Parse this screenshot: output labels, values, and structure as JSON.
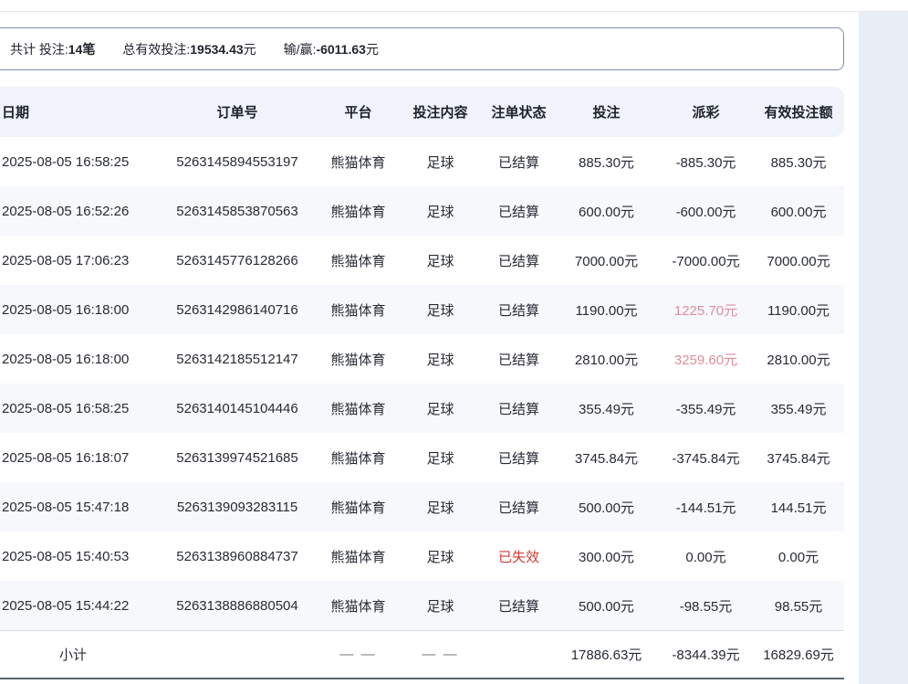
{
  "summary": {
    "total_label": "共计 投注:",
    "total_value": "14笔",
    "valid_label": "总有效投注:",
    "valid_value": "19534.43",
    "valid_unit": "元",
    "winloss_label": "输/赢:",
    "winloss_value": "-6011.63",
    "winloss_unit": "元"
  },
  "table": {
    "headers": [
      "日期",
      "订单号",
      "平台",
      "投注内容",
      "注单状态",
      "投注",
      "派彩",
      "有效投注额"
    ],
    "rows": [
      {
        "date": "2025-08-05 16:58:25",
        "order": "5263145894553197",
        "platform": "熊猫体育",
        "content": "足球",
        "status": "已结算",
        "status_type": "settled",
        "bet": "885.30元",
        "payout": "-885.30元",
        "payout_type": "negative",
        "valid": "885.30元"
      },
      {
        "date": "2025-08-05 16:52:26",
        "order": "5263145853870563",
        "platform": "熊猫体育",
        "content": "足球",
        "status": "已结算",
        "status_type": "settled",
        "bet": "600.00元",
        "payout": "-600.00元",
        "payout_type": "negative",
        "valid": "600.00元"
      },
      {
        "date": "2025-08-05 17:06:23",
        "order": "5263145776128266",
        "platform": "熊猫体育",
        "content": "足球",
        "status": "已结算",
        "status_type": "settled",
        "bet": "7000.00元",
        "payout": "-7000.00元",
        "payout_type": "negative",
        "valid": "7000.00元"
      },
      {
        "date": "2025-08-05 16:18:00",
        "order": "5263142986140716",
        "platform": "熊猫体育",
        "content": "足球",
        "status": "已结算",
        "status_type": "settled",
        "bet": "1190.00元",
        "payout": "1225.70元",
        "payout_type": "positive",
        "valid": "1190.00元"
      },
      {
        "date": "2025-08-05 16:18:00",
        "order": "5263142185512147",
        "platform": "熊猫体育",
        "content": "足球",
        "status": "已结算",
        "status_type": "settled",
        "bet": "2810.00元",
        "payout": "3259.60元",
        "payout_type": "positive",
        "valid": "2810.00元"
      },
      {
        "date": "2025-08-05 16:58:25",
        "order": "5263140145104446",
        "platform": "熊猫体育",
        "content": "足球",
        "status": "已结算",
        "status_type": "settled",
        "bet": "355.49元",
        "payout": "-355.49元",
        "payout_type": "negative",
        "valid": "355.49元"
      },
      {
        "date": "2025-08-05 16:18:07",
        "order": "5263139974521685",
        "platform": "熊猫体育",
        "content": "足球",
        "status": "已结算",
        "status_type": "settled",
        "bet": "3745.84元",
        "payout": "-3745.84元",
        "payout_type": "negative",
        "valid": "3745.84元"
      },
      {
        "date": "2025-08-05 15:47:18",
        "order": "5263139093283115",
        "platform": "熊猫体育",
        "content": "足球",
        "status": "已结算",
        "status_type": "settled",
        "bet": "500.00元",
        "payout": "-144.51元",
        "payout_type": "negative",
        "valid": "144.51元"
      },
      {
        "date": "2025-08-05 15:40:53",
        "order": "5263138960884737",
        "platform": "熊猫体育",
        "content": "足球",
        "status": "已失效",
        "status_type": "invalid",
        "bet": "300.00元",
        "payout": "0.00元",
        "payout_type": "neutral",
        "valid": "0.00元"
      },
      {
        "date": "2025-08-05 15:44:22",
        "order": "5263138886880504",
        "platform": "熊猫体育",
        "content": "足球",
        "status": "已结算",
        "status_type": "settled",
        "bet": "500.00元",
        "payout": "-98.55元",
        "payout_type": "negative",
        "valid": "98.55元"
      }
    ],
    "footer": {
      "label": "小计",
      "platform_dash": "— —",
      "content_dash": "— —",
      "bet": "17886.63元",
      "payout": "-8344.39元",
      "valid": "16829.69元"
    }
  },
  "colors": {
    "invalid_status_red": "#d23a31",
    "positive_payout_pink": "#df8d9b",
    "header_bg": "#f0f3f9",
    "zebra_row_bg": "#f6f8fc",
    "summary_box_border": "#7d8cb5",
    "right_gutter_bg": "#e9edf6"
  }
}
